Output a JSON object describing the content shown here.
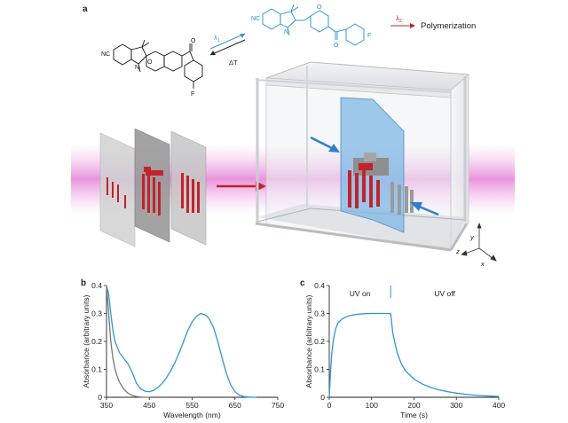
{
  "panel_a": {
    "letter": "a",
    "chem_labels": {
      "cn_left": "NC",
      "cn_right": "NC",
      "n_left": "N",
      "o_left": "O",
      "f_left": "F",
      "n_right": "N",
      "o_right": "O",
      "f_right": "F"
    },
    "lambda1": "λ",
    "lambda1_sub": "1",
    "delta_t": "ΔT",
    "lambda2": "λ",
    "lambda2_sub": "2",
    "polymerization": "Polymerization",
    "axis_y": "y",
    "axis_z": "z",
    "axis_x": "x"
  },
  "colors": {
    "blue_curve": "#2f95d8",
    "grey_curve": "#777777",
    "red_arrow": "#c0242a",
    "pink_beam": "#e88ad8",
    "blue_sheet": "#7fb8e6"
  },
  "chart_data": [
    {
      "panel": "b",
      "type": "line",
      "xlabel": "Wavelength (nm)",
      "ylabel": "Absorbance (arbitrary units)",
      "xlim": [
        350,
        750
      ],
      "ylim": [
        0,
        0.4
      ],
      "xticks": [
        350,
        450,
        550,
        650,
        750
      ],
      "yticks": [
        0,
        0.1,
        0.2,
        0.3,
        0.4
      ],
      "xtick_labels": [
        "350",
        "450",
        "550",
        "650",
        "750"
      ],
      "ytick_labels": [
        "0",
        "0.1",
        "0.2",
        "0.3",
        "0.4"
      ],
      "series": [
        {
          "color": "#2f95d8",
          "x": [
            350,
            355,
            360,
            365,
            370,
            380,
            390,
            400,
            410,
            420,
            430,
            440,
            450,
            460,
            470,
            480,
            490,
            500,
            510,
            520,
            530,
            540,
            550,
            560,
            570,
            580,
            585,
            590,
            600,
            610,
            620,
            630,
            640,
            650,
            660,
            670,
            680,
            690,
            700
          ],
          "y": [
            0.4,
            0.37,
            0.3,
            0.24,
            0.2,
            0.16,
            0.14,
            0.12,
            0.09,
            0.05,
            0.03,
            0.022,
            0.02,
            0.025,
            0.035,
            0.05,
            0.07,
            0.095,
            0.125,
            0.16,
            0.2,
            0.24,
            0.27,
            0.29,
            0.3,
            0.295,
            0.29,
            0.28,
            0.25,
            0.2,
            0.14,
            0.085,
            0.045,
            0.02,
            0.008,
            0.003,
            0.001,
            0.0,
            0.0
          ]
        },
        {
          "color": "#777777",
          "x": [
            350,
            355,
            360,
            365,
            370,
            375,
            380,
            390,
            400,
            410,
            420,
            430,
            440,
            450
          ],
          "y": [
            0.4,
            0.3,
            0.2,
            0.14,
            0.1,
            0.075,
            0.055,
            0.03,
            0.015,
            0.007,
            0.003,
            0.001,
            0.0,
            0.0
          ]
        }
      ]
    },
    {
      "panel": "c",
      "type": "line",
      "xlabel": "Time (s)",
      "ylabel": "Absorbance (arbitrary units)",
      "xlim": [
        0,
        400
      ],
      "ylim": [
        0,
        0.4
      ],
      "xticks": [
        0,
        100,
        200,
        300,
        400
      ],
      "yticks": [
        0,
        0.1,
        0.2,
        0.3,
        0.4
      ],
      "xtick_labels": [
        "0",
        "100",
        "200",
        "300",
        "400"
      ],
      "ytick_labels": [
        "0",
        "0.1",
        "0.2",
        "0.3",
        "0.4"
      ],
      "annotations": [
        "UV on",
        "UV off"
      ],
      "switch_time": 145,
      "series": [
        {
          "color": "#2f95d8",
          "x": [
            0,
            3,
            6,
            10,
            15,
            20,
            30,
            40,
            50,
            60,
            80,
            100,
            120,
            140,
            145,
            150,
            160,
            170,
            180,
            200,
            220,
            240,
            260,
            280,
            300,
            320,
            340,
            360,
            380,
            400
          ],
          "y": [
            0.0,
            0.09,
            0.16,
            0.21,
            0.245,
            0.265,
            0.28,
            0.288,
            0.293,
            0.296,
            0.299,
            0.3,
            0.3,
            0.3,
            0.3,
            0.23,
            0.16,
            0.12,
            0.095,
            0.065,
            0.047,
            0.035,
            0.026,
            0.02,
            0.015,
            0.011,
            0.008,
            0.006,
            0.004,
            0.003
          ]
        }
      ]
    }
  ]
}
